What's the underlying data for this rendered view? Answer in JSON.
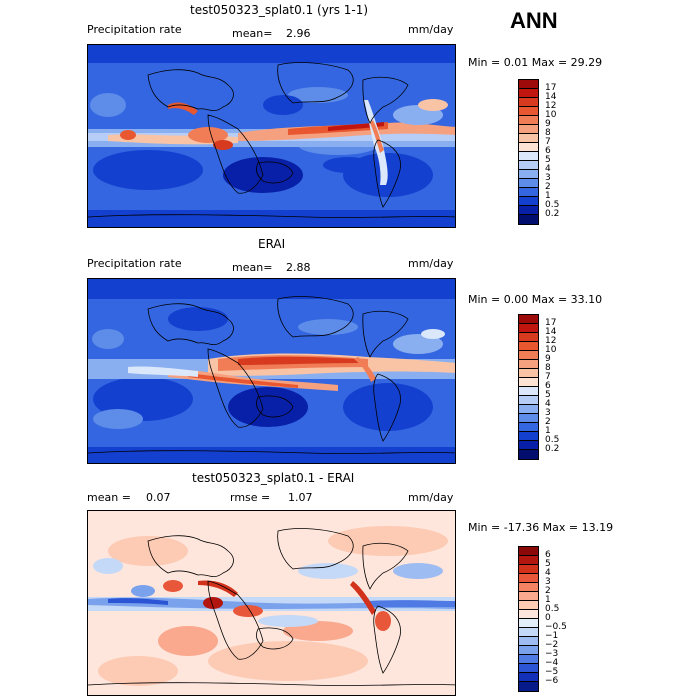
{
  "season": "ANN",
  "panels": [
    {
      "title": "test050323_splat0.1 (yrs 1-1)",
      "left_label": "Precipitation rate",
      "stat1_label": "mean=",
      "stat1_value": "2.96",
      "stat2_label": "",
      "stat2_value": "",
      "units": "mm/day",
      "minmax": "Min =    0.01 Max =   29.29",
      "colorbar_labels": [
        "17",
        "14",
        "12",
        "10",
        "9",
        "8",
        "7",
        "6",
        "5",
        "4",
        "3",
        "2",
        "1",
        "0.5",
        "0.2"
      ],
      "colorbar_colors": [
        "#9e0a0a",
        "#c1160f",
        "#d73a1e",
        "#e8572f",
        "#f07d55",
        "#f5a07f",
        "#f9c3a6",
        "#fde3d3",
        "#dbe7fa",
        "#b6cdf7",
        "#8aaff0",
        "#5d8ce9",
        "#3366e0",
        "#1440cf",
        "#0820a8",
        "#020e6e"
      ]
    },
    {
      "title": "ERAI",
      "left_label": "Precipitation rate",
      "stat1_label": "mean=",
      "stat1_value": "2.88",
      "stat2_label": "",
      "stat2_value": "",
      "units": "mm/day",
      "minmax": "Min =    0.00 Max =   33.10",
      "colorbar_labels": [
        "17",
        "14",
        "12",
        "10",
        "9",
        "8",
        "7",
        "6",
        "5",
        "4",
        "3",
        "2",
        "1",
        "0.5",
        "0.2"
      ],
      "colorbar_colors": [
        "#9e0a0a",
        "#c1160f",
        "#d73a1e",
        "#e8572f",
        "#f07d55",
        "#f5a07f",
        "#f9c3a6",
        "#fde3d3",
        "#dbe7fa",
        "#b6cdf7",
        "#8aaff0",
        "#5d8ce9",
        "#3366e0",
        "#1440cf",
        "#0820a8",
        "#020e6e"
      ]
    },
    {
      "title": "test050323_splat0.1 - ERAI",
      "left_label": "",
      "stat1_label": "mean =",
      "stat1_value": "0.07",
      "stat2_label": "rmse =",
      "stat2_value": "1.07",
      "units": "mm/day",
      "minmax": "Min = -17.36 Max =   13.19",
      "colorbar_labels": [
        "6",
        "5",
        "4",
        "3",
        "2",
        "1",
        "0.5",
        "0",
        "−0.5",
        "−1",
        "−2",
        "−3",
        "−4",
        "−5",
        "−6"
      ],
      "colorbar_colors": [
        "#8a0808",
        "#b3150f",
        "#d2321c",
        "#e8573a",
        "#f48363",
        "#faa98e",
        "#fdcab4",
        "#fee6dc",
        "#e3eefb",
        "#c4d8f7",
        "#9dbdf2",
        "#7aa1ec",
        "#4f7ae3",
        "#2c55d6",
        "#1230b8",
        "#061a8a"
      ]
    }
  ]
}
